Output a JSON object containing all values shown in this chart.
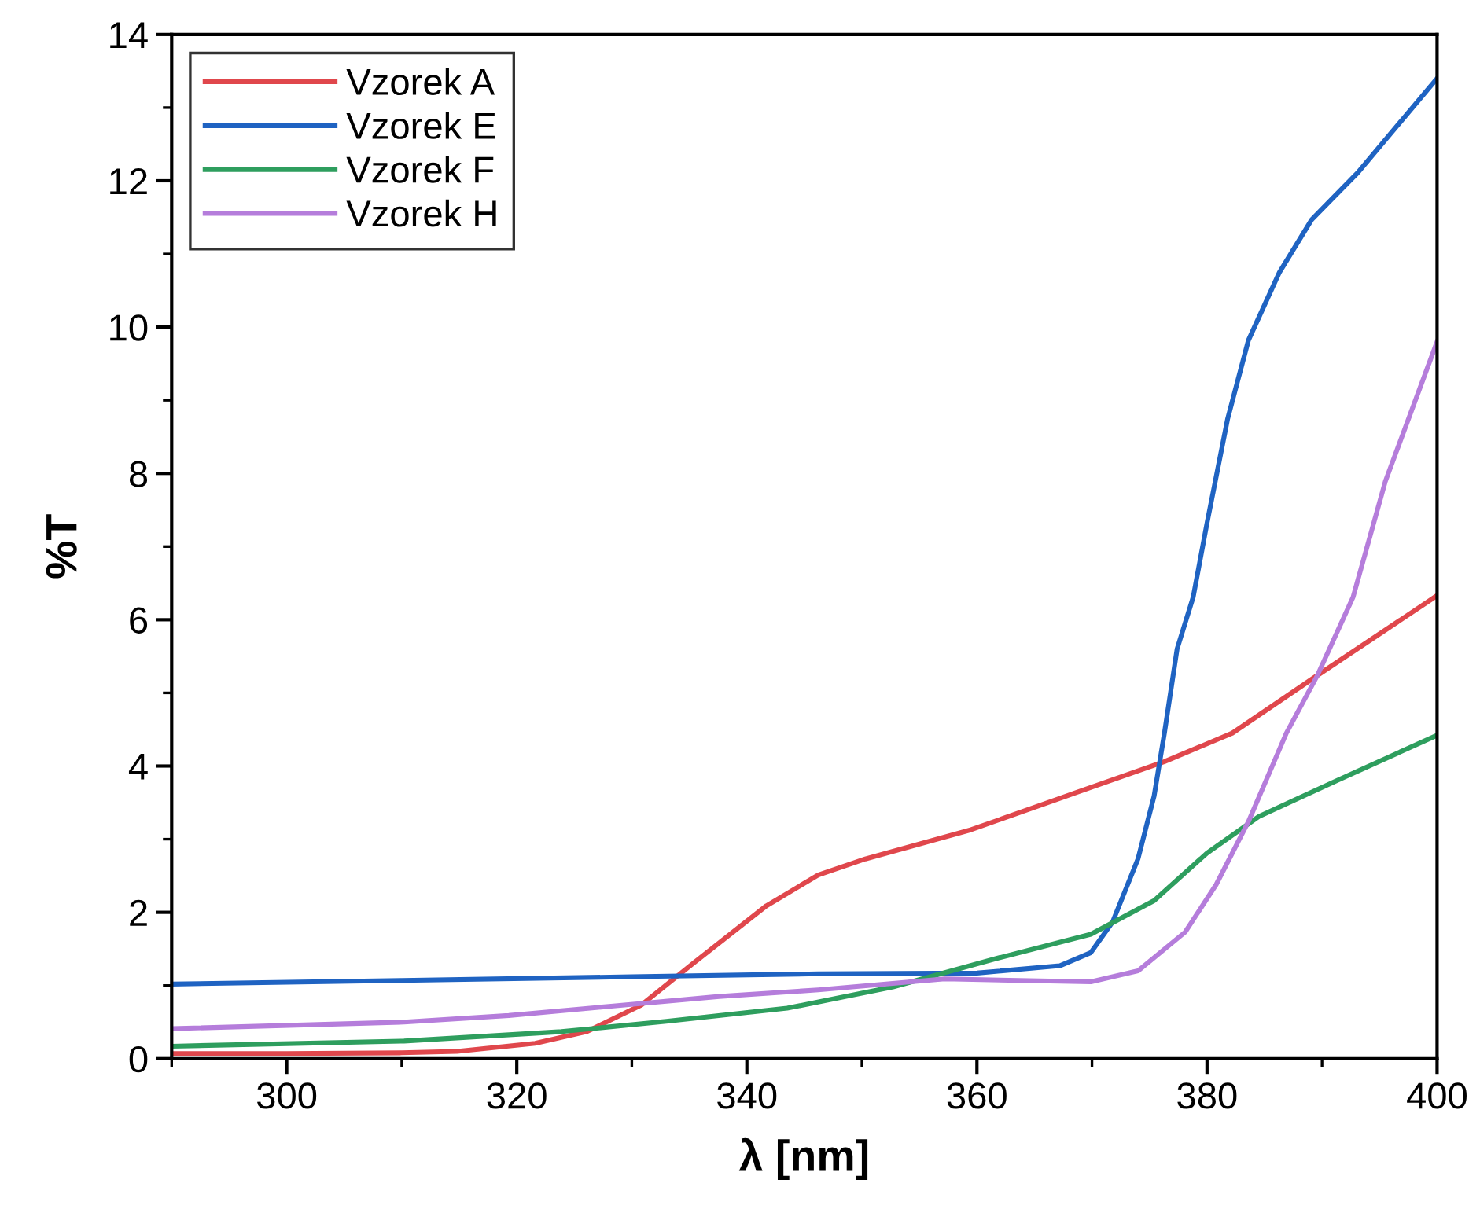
{
  "chart_data": {
    "type": "line",
    "xlabel": "λ [nm]",
    "ylabel": "%T",
    "xlim": [
      290,
      400
    ],
    "ylim": [
      0,
      14
    ],
    "xticks": [
      300,
      320,
      340,
      360,
      380,
      400
    ],
    "yticks": [
      0,
      2,
      4,
      6,
      8,
      10,
      12,
      14
    ],
    "grid": false,
    "legend": "top left",
    "marker": "none",
    "line_style": "solid",
    "series": [
      {
        "name": "Vzorek A",
        "color": "#e0474c",
        "x": [
          290,
          300,
          310,
          314.8,
          321.6,
          326.1,
          330.8,
          335.3,
          341.7,
          346.2,
          350.3,
          359.5,
          368.5,
          376.3,
          382.2,
          389.6,
          400
        ],
        "values": [
          0.07,
          0.07,
          0.08,
          0.1,
          0.21,
          0.37,
          0.73,
          1.3,
          2.09,
          2.51,
          2.73,
          3.13,
          3.63,
          4.06,
          4.45,
          5.24,
          6.33
        ]
      },
      {
        "name": "Vzorek E",
        "color": "#1f63c2",
        "x": [
          290,
          310,
          330,
          346.2,
          360,
          367.2,
          369.9,
          371.8,
          374,
          375.4,
          376.3,
          377.4,
          378.8,
          380,
          381.8,
          383.6,
          386.3,
          389.1,
          393.1,
          400
        ],
        "values": [
          1.02,
          1.07,
          1.12,
          1.16,
          1.17,
          1.27,
          1.45,
          1.87,
          2.73,
          3.59,
          4.45,
          5.6,
          6.31,
          7.32,
          8.75,
          9.82,
          10.75,
          11.47,
          12.11,
          13.4
        ]
      },
      {
        "name": "Vzorek F",
        "color": "#2e9e5e",
        "x": [
          290,
          310.2,
          323.9,
          333,
          343.5,
          352.7,
          361.7,
          369.9,
          375.4,
          380,
          384.5,
          391.4,
          400
        ],
        "values": [
          0.17,
          0.24,
          0.37,
          0.51,
          0.69,
          0.98,
          1.37,
          1.7,
          2.16,
          2.81,
          3.31,
          3.81,
          4.42
        ]
      },
      {
        "name": "Vzorek H",
        "color": "#b57ddb",
        "x": [
          290,
          310.2,
          319.3,
          328.4,
          337.6,
          346.2,
          357.2,
          369.9,
          374,
          378.1,
          380.8,
          383.6,
          386.9,
          389.6,
          392.7,
          395.5,
          400
        ],
        "values": [
          0.41,
          0.5,
          0.59,
          0.72,
          0.85,
          0.94,
          1.09,
          1.05,
          1.2,
          1.73,
          2.38,
          3.24,
          4.45,
          5.24,
          6.31,
          7.89,
          9.8
        ]
      }
    ]
  }
}
